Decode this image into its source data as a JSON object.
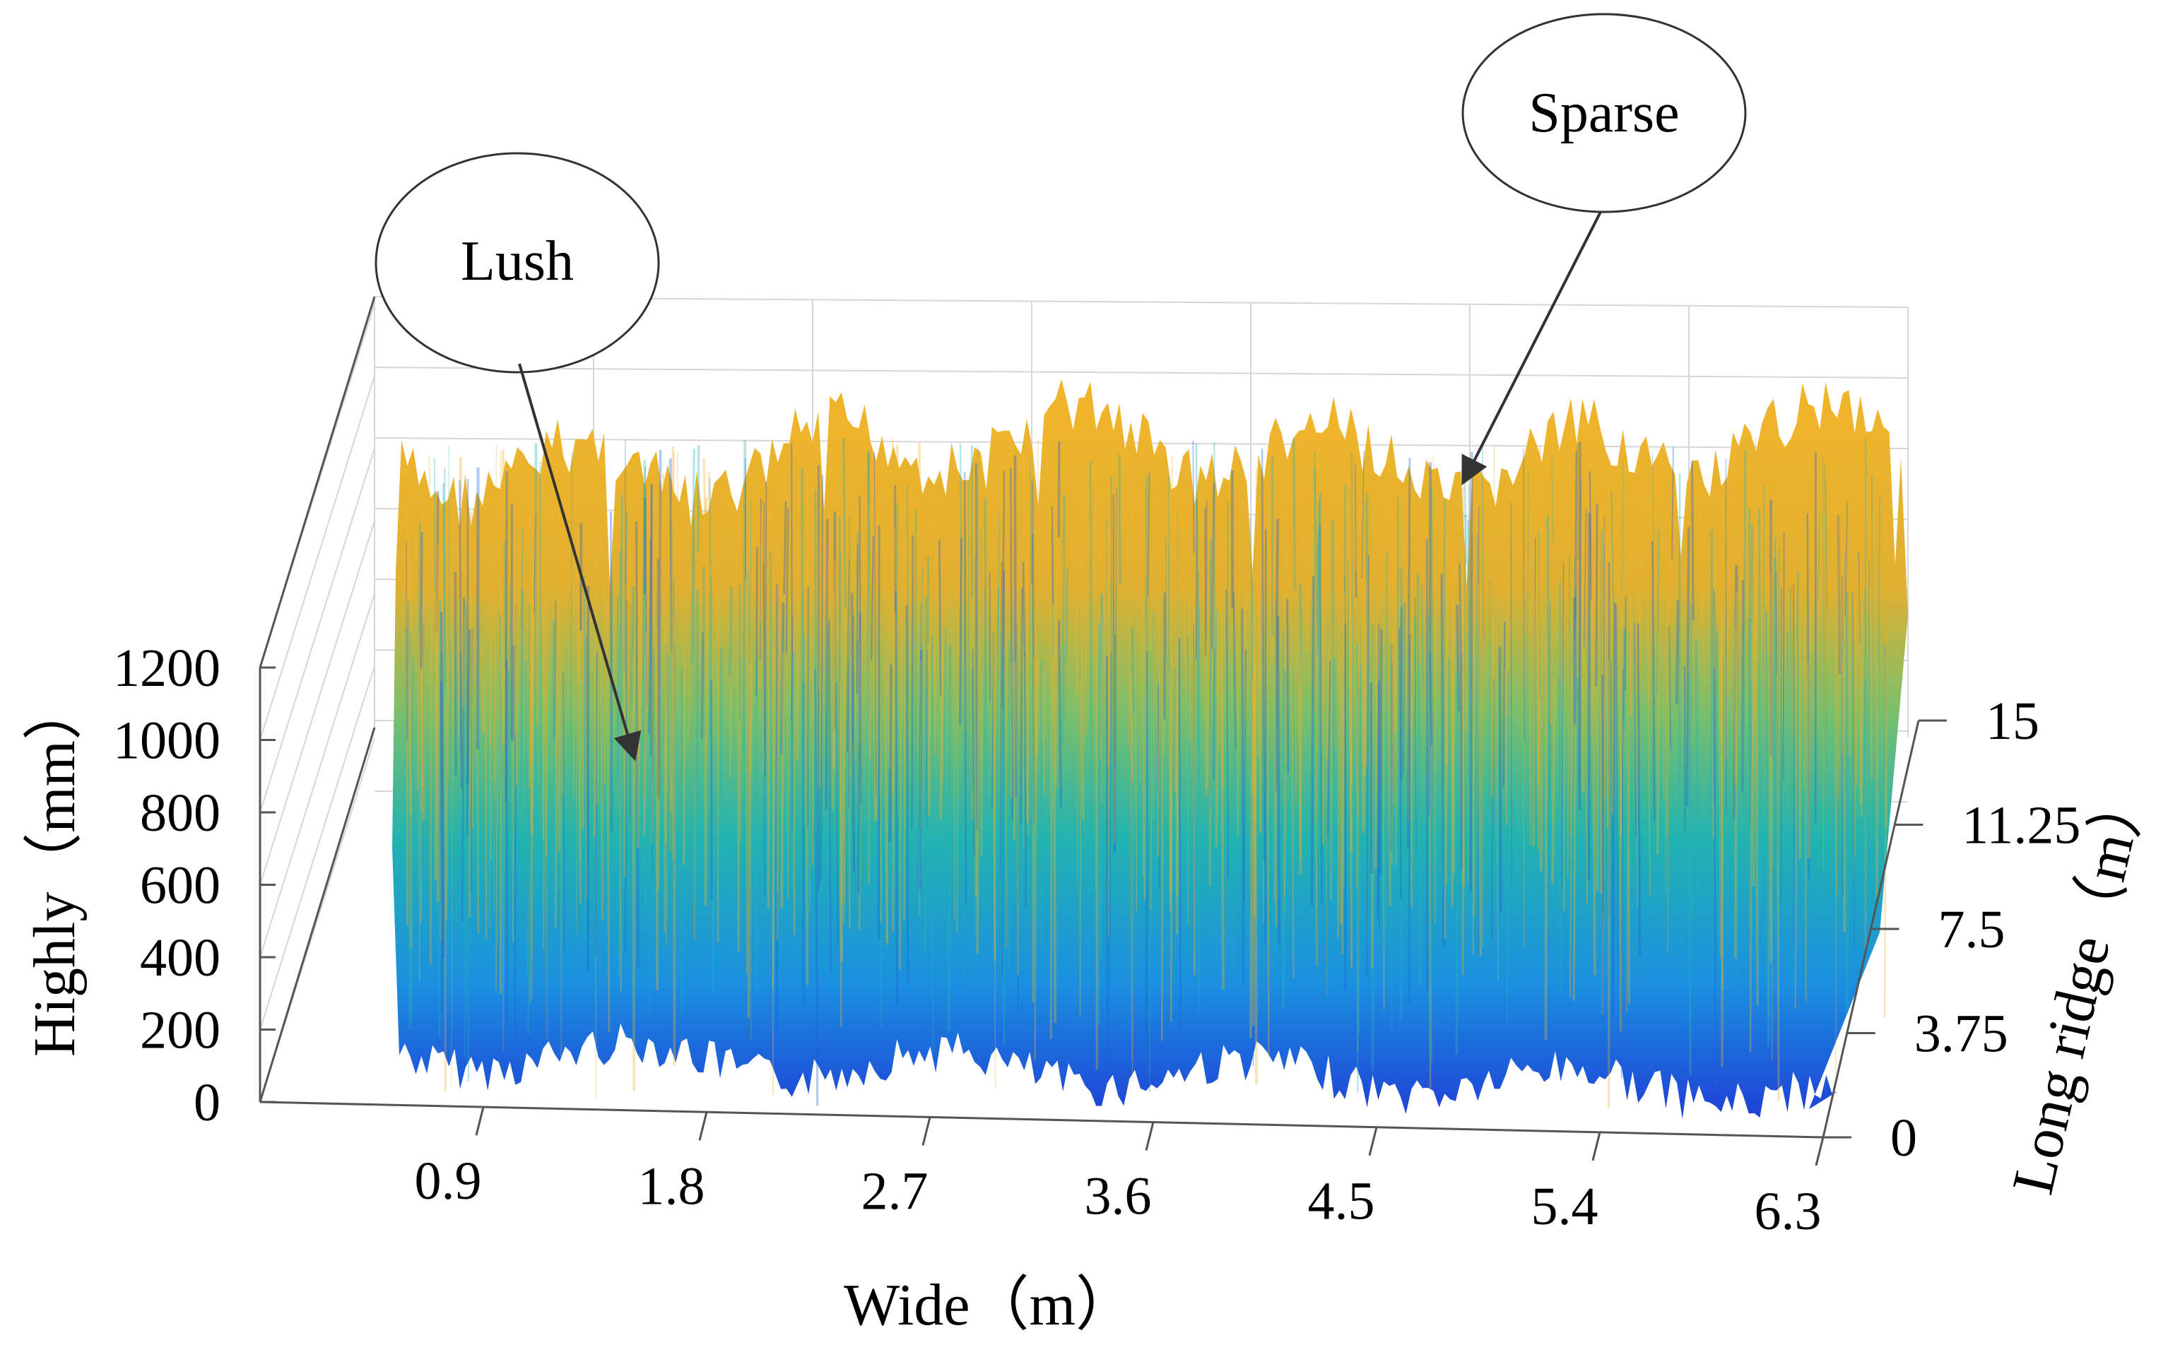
{
  "chart_data": {
    "type": "surface3d",
    "title": "",
    "xlabel": "Wide（m）",
    "ylabel": "Long ridge（m）",
    "zlabel": "Highly（mm）",
    "x_ticks": [
      "0.9",
      "1.8",
      "2.7",
      "3.6",
      "4.5",
      "5.4",
      "6.3"
    ],
    "y_ticks": [
      "0",
      "3.75",
      "7.5",
      "11.25",
      "15"
    ],
    "z_ticks": [
      "0",
      "200",
      "400",
      "600",
      "800",
      "1000",
      "1200"
    ],
    "xlim": [
      0,
      6.3
    ],
    "ylim": [
      0,
      15
    ],
    "zlim": [
      0,
      1200
    ],
    "grid": true,
    "colormap": [
      "#1f3fd6",
      "#1a8fe0",
      "#22b3b0",
      "#7bbf6a",
      "#e0b030",
      "#f2b52a"
    ],
    "annotations": [
      {
        "text": "Lush"
      },
      {
        "text": "Sparse"
      }
    ]
  }
}
